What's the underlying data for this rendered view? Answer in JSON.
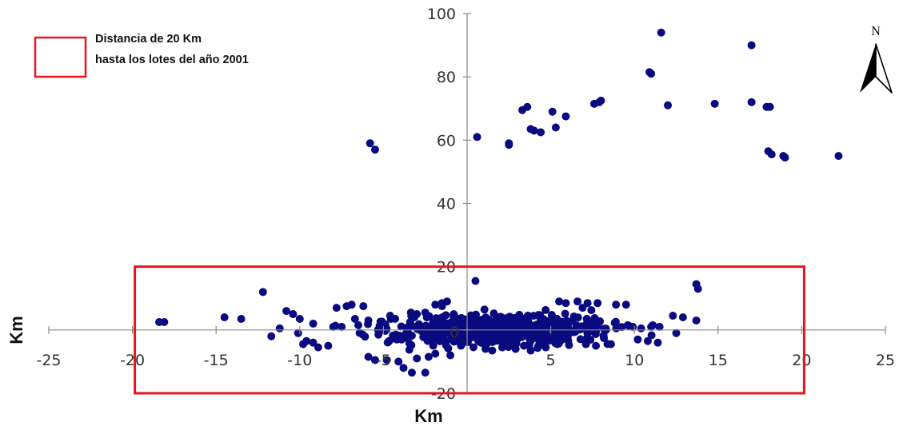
{
  "legend": {
    "line1": "Distancia de 20 Km",
    "line2": "hasta los lotes del año 2001",
    "box_color": "#e8141c"
  },
  "north_arrow": {
    "label": "N",
    "icon": "north-arrow-icon"
  },
  "chart_data": {
    "type": "scatter",
    "xlabel": "Km",
    "ylabel": "Km",
    "xlim": [
      -25,
      25
    ],
    "ylim": [
      -20,
      100
    ],
    "x_ticks": [
      -25,
      -20,
      -15,
      -10,
      -5,
      0,
      5,
      10,
      15,
      20,
      25
    ],
    "y_ticks": [
      -20,
      20,
      40,
      60,
      80,
      100
    ],
    "grid": false,
    "marker_color": "#0a0a80",
    "zone": {
      "label": "Distancia de 20 Km hasta los lotes del año 2001",
      "x": [
        -20,
        20
      ],
      "y": [
        -20,
        20
      ],
      "color": "#e8141c"
    },
    "series": [
      {
        "x": [
          11.6,
          17.0,
          10.9,
          11.0,
          7.9,
          7.6,
          8.0,
          12.0,
          14.8,
          17.0,
          17.9,
          18.1,
          3.3,
          3.6,
          5.1,
          5.9,
          3.8,
          4.0,
          4.4,
          5.3,
          0.6,
          2.5,
          2.5,
          -5.8,
          -5.5,
          18.0,
          18.2,
          18.9,
          19.0,
          22.2,
          0.5,
          -12.2,
          13.7,
          13.8,
          -18.4,
          -18.1,
          -14.5,
          -13.5,
          -11.2,
          -10.8,
          -10.4,
          -10.0,
          -9.8,
          -9.6,
          -9.2,
          -8.9,
          -8.3,
          -7.8,
          -7.2,
          -6.9,
          -6.2,
          -5.9,
          -5.5,
          -4.8,
          -4.1,
          -3.8,
          -3.3,
          -2.5,
          -1.9,
          -1.5,
          -1.2,
          12.9,
          12.3,
          13.7,
          11.5,
          11.0,
          10.4,
          9.5,
          8.9,
          7.8,
          7.2,
          6.6,
          5.5,
          5.9,
          6.9,
          9.6,
          10.2,
          10.8,
          11.4,
          7.1,
          7.7,
          8.6,
          2.1,
          2.9,
          3.8,
          4.7,
          5.4,
          1.1,
          1.5,
          3.4,
          -1.0,
          -1.9,
          -2.3,
          -3.0,
          -1.5,
          -2.5,
          -4.6,
          -5.9,
          -6.5,
          -8.0,
          -9.2,
          -10.1,
          -11.7,
          -5.3,
          -4.2,
          -3.6,
          -0.4,
          0.2,
          1.6,
          3.7,
          6.3,
          8.3,
          9.9,
          11.1,
          12.5,
          4.4,
          -0.8,
          -6.7,
          -7.5,
          2.6
        ],
        "y": [
          94,
          90,
          81.5,
          81,
          72,
          71.5,
          72.5,
          71,
          71.5,
          72,
          70.5,
          70.5,
          69.5,
          70.5,
          69,
          67.5,
          63.5,
          63,
          62.5,
          64,
          61,
          58.5,
          59,
          59,
          57,
          56.5,
          55.5,
          55,
          54.5,
          55,
          15.5,
          12,
          14.5,
          13,
          2.5,
          2.5,
          4,
          3.5,
          0.5,
          6,
          5,
          3.5,
          -4.5,
          -3.5,
          -4,
          -5.5,
          -5,
          7,
          7.5,
          8,
          7.5,
          -8.5,
          -9.5,
          -9.5,
          -10,
          -12,
          -13.5,
          -13.5,
          8,
          8.5,
          9,
          4,
          4.5,
          3,
          1,
          1,
          0.5,
          8,
          8,
          8.5,
          8.5,
          9,
          9,
          8.5,
          7,
          1.5,
          -3,
          -3.5,
          -4,
          -4.5,
          -5,
          -4.5,
          -5.5,
          -6,
          -6.5,
          -5.5,
          -4.5,
          -6,
          -6.5,
          -5,
          -8,
          -7.5,
          -8.5,
          -9,
          7.5,
          5.5,
          4.5,
          3,
          1.5,
          1,
          2,
          -1,
          -2,
          -1.5,
          -3,
          -2.5,
          -3,
          -2.5,
          -2,
          -1,
          -0.5,
          0,
          1,
          1.5,
          -1,
          3,
          5,
          3.5,
          1,
          2.5
        ]
      }
    ]
  }
}
